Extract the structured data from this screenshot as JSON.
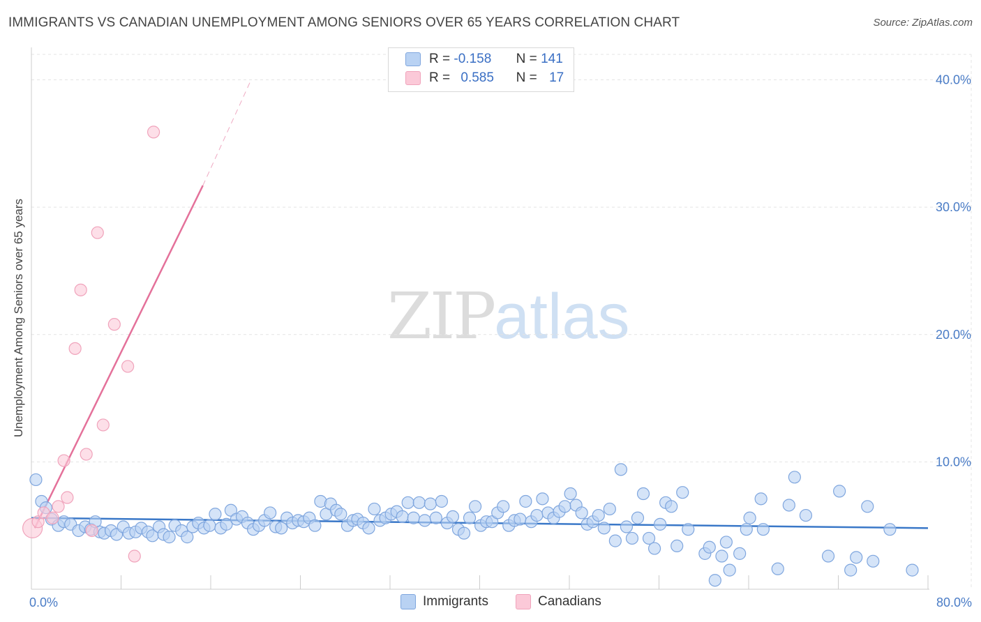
{
  "title": "IMMIGRANTS VS CANADIAN UNEMPLOYMENT AMONG SENIORS OVER 65 YEARS CORRELATION CHART",
  "source": "Source: ZipAtlas.com",
  "watermark": {
    "zip": "ZIP",
    "atlas": "atlas"
  },
  "legend": {
    "immigrants": {
      "r_label": "R =",
      "r_value": "-0.158",
      "n_label": "N =",
      "n_value": "141"
    },
    "canadians": {
      "r_label": "R =",
      "r_value": "0.585",
      "n_label": "N =",
      "n_value": "17"
    }
  },
  "colors": {
    "immigrants_fill": "#b9d2f3",
    "immigrants_stroke": "#7fa6de",
    "immigrants_line": "#3a78c8",
    "canadians_fill": "#fbc9d8",
    "canadians_stroke": "#f0a3bb",
    "canadians_line": "#e4719a",
    "grid": "#e4e4e4",
    "tick_text": "#4a7cc6"
  },
  "chart_data": {
    "type": "scatter",
    "title": "IMMIGRANTS VS CANADIAN UNEMPLOYMENT AMONG SENIORS OVER 65 YEARS CORRELATION CHART",
    "xlabel": "",
    "ylabel": "Unemployment Among Seniors over 65 years",
    "xlim": [
      0,
      80
    ],
    "ylim": [
      0,
      42
    ],
    "x_tick_labels": [
      {
        "value": 0,
        "label": "0.0%"
      },
      {
        "value": 80,
        "label": "80.0%"
      }
    ],
    "y_tick_labels": [
      {
        "value": 10,
        "label": "10.0%"
      },
      {
        "value": 20,
        "label": "20.0%"
      },
      {
        "value": 30,
        "label": "30.0%"
      },
      {
        "value": 40,
        "label": "40.0%"
      }
    ],
    "legend": [
      "Immigrants",
      "Canadians"
    ],
    "series": [
      {
        "name": "Immigrants",
        "trend": {
          "x": [
            0,
            80
          ],
          "y": [
            5.6,
            4.8
          ]
        },
        "points": [
          [
            0.4,
            8.6
          ],
          [
            0.9,
            6.9
          ],
          [
            1.3,
            6.4
          ],
          [
            1.8,
            5.5
          ],
          [
            2.4,
            5.0
          ],
          [
            2.9,
            5.3
          ],
          [
            3.5,
            5.1
          ],
          [
            4.2,
            4.6
          ],
          [
            4.8,
            4.9
          ],
          [
            5.3,
            4.7
          ],
          [
            5.7,
            5.3
          ],
          [
            6.1,
            4.5
          ],
          [
            6.5,
            4.4
          ],
          [
            7.1,
            4.6
          ],
          [
            7.6,
            4.3
          ],
          [
            8.2,
            4.9
          ],
          [
            8.7,
            4.4
          ],
          [
            9.3,
            4.5
          ],
          [
            9.8,
            4.8
          ],
          [
            10.4,
            4.5
          ],
          [
            10.8,
            4.2
          ],
          [
            11.4,
            4.9
          ],
          [
            11.8,
            4.3
          ],
          [
            12.3,
            4.1
          ],
          [
            12.8,
            5.0
          ],
          [
            13.4,
            4.6
          ],
          [
            13.9,
            4.1
          ],
          [
            14.4,
            4.9
          ],
          [
            14.9,
            5.2
          ],
          [
            15.4,
            4.8
          ],
          [
            15.9,
            5.0
          ],
          [
            16.4,
            5.9
          ],
          [
            16.9,
            4.8
          ],
          [
            17.4,
            5.1
          ],
          [
            17.8,
            6.2
          ],
          [
            18.3,
            5.5
          ],
          [
            18.8,
            5.7
          ],
          [
            19.3,
            5.2
          ],
          [
            19.8,
            4.7
          ],
          [
            20.3,
            5.0
          ],
          [
            20.8,
            5.4
          ],
          [
            21.3,
            6.0
          ],
          [
            21.8,
            4.9
          ],
          [
            22.3,
            4.8
          ],
          [
            22.8,
            5.6
          ],
          [
            23.3,
            5.2
          ],
          [
            23.8,
            5.4
          ],
          [
            24.3,
            5.3
          ],
          [
            24.8,
            5.6
          ],
          [
            25.3,
            5.0
          ],
          [
            25.8,
            6.9
          ],
          [
            26.3,
            5.9
          ],
          [
            26.7,
            6.7
          ],
          [
            27.2,
            6.2
          ],
          [
            27.6,
            5.9
          ],
          [
            28.2,
            5.0
          ],
          [
            28.7,
            5.4
          ],
          [
            29.1,
            5.5
          ],
          [
            29.6,
            5.2
          ],
          [
            30.1,
            4.8
          ],
          [
            30.6,
            6.3
          ],
          [
            31.1,
            5.4
          ],
          [
            31.6,
            5.6
          ],
          [
            32.1,
            5.9
          ],
          [
            32.6,
            6.1
          ],
          [
            33.1,
            5.7
          ],
          [
            33.6,
            6.8
          ],
          [
            34.1,
            5.6
          ],
          [
            34.6,
            6.8
          ],
          [
            35.1,
            5.4
          ],
          [
            35.6,
            6.7
          ],
          [
            36.1,
            5.6
          ],
          [
            36.6,
            6.9
          ],
          [
            37.1,
            5.2
          ],
          [
            37.6,
            5.7
          ],
          [
            38.1,
            4.7
          ],
          [
            38.6,
            4.4
          ],
          [
            39.1,
            5.6
          ],
          [
            39.6,
            6.5
          ],
          [
            40.1,
            5.0
          ],
          [
            40.6,
            5.3
          ],
          [
            41.1,
            5.3
          ],
          [
            41.6,
            6.0
          ],
          [
            42.1,
            6.5
          ],
          [
            42.6,
            5.0
          ],
          [
            43.1,
            5.4
          ],
          [
            43.6,
            5.5
          ],
          [
            44.1,
            6.9
          ],
          [
            44.6,
            5.3
          ],
          [
            45.1,
            5.8
          ],
          [
            45.6,
            7.1
          ],
          [
            46.1,
            6.0
          ],
          [
            46.6,
            5.6
          ],
          [
            47.1,
            6.1
          ],
          [
            47.6,
            6.5
          ],
          [
            48.1,
            7.5
          ],
          [
            48.6,
            6.6
          ],
          [
            49.1,
            6.0
          ],
          [
            49.6,
            5.1
          ],
          [
            50.1,
            5.3
          ],
          [
            50.6,
            5.8
          ],
          [
            51.1,
            4.8
          ],
          [
            51.6,
            6.3
          ],
          [
            52.1,
            3.8
          ],
          [
            52.6,
            9.4
          ],
          [
            53.1,
            4.9
          ],
          [
            53.6,
            4.0
          ],
          [
            54.1,
            5.6
          ],
          [
            54.6,
            7.5
          ],
          [
            55.1,
            4.0
          ],
          [
            55.6,
            3.2
          ],
          [
            56.1,
            5.1
          ],
          [
            56.6,
            6.8
          ],
          [
            57.1,
            6.5
          ],
          [
            57.6,
            3.4
          ],
          [
            58.1,
            7.6
          ],
          [
            58.6,
            4.7
          ],
          [
            60.1,
            2.8
          ],
          [
            60.5,
            3.3
          ],
          [
            61.0,
            0.7
          ],
          [
            61.6,
            2.6
          ],
          [
            62.0,
            3.7
          ],
          [
            62.3,
            1.5
          ],
          [
            63.2,
            2.8
          ],
          [
            63.8,
            4.7
          ],
          [
            64.1,
            5.6
          ],
          [
            65.1,
            7.1
          ],
          [
            65.3,
            4.7
          ],
          [
            66.6,
            1.6
          ],
          [
            67.6,
            6.6
          ],
          [
            68.1,
            8.8
          ],
          [
            69.1,
            5.8
          ],
          [
            71.1,
            2.6
          ],
          [
            72.1,
            7.7
          ],
          [
            73.1,
            1.5
          ],
          [
            73.6,
            2.5
          ],
          [
            74.6,
            6.5
          ],
          [
            75.1,
            2.2
          ],
          [
            76.6,
            4.7
          ],
          [
            78.6,
            1.5
          ]
        ]
      },
      {
        "name": "Canadians",
        "trend": {
          "x": [
            0.3,
            15.3
          ],
          "y": [
            4.8,
            31.7
          ]
        },
        "trend_extension": {
          "x": [
            15.3,
            19.5
          ],
          "y": [
            31.7,
            39.8
          ]
        },
        "points": [
          [
            0.1,
            4.8
          ],
          [
            0.6,
            5.3
          ],
          [
            1.1,
            6.0
          ],
          [
            1.9,
            5.6
          ],
          [
            2.4,
            6.5
          ],
          [
            2.9,
            10.1
          ],
          [
            3.2,
            7.2
          ],
          [
            3.9,
            18.9
          ],
          [
            4.4,
            23.5
          ],
          [
            4.9,
            10.6
          ],
          [
            5.4,
            4.6
          ],
          [
            5.9,
            28.0
          ],
          [
            6.4,
            12.9
          ],
          [
            7.4,
            20.8
          ],
          [
            8.6,
            17.5
          ],
          [
            9.2,
            2.6
          ],
          [
            10.9,
            35.9
          ]
        ]
      }
    ]
  },
  "bottom_legend": {
    "immigrants": "Immigrants",
    "canadians": "Canadians"
  }
}
